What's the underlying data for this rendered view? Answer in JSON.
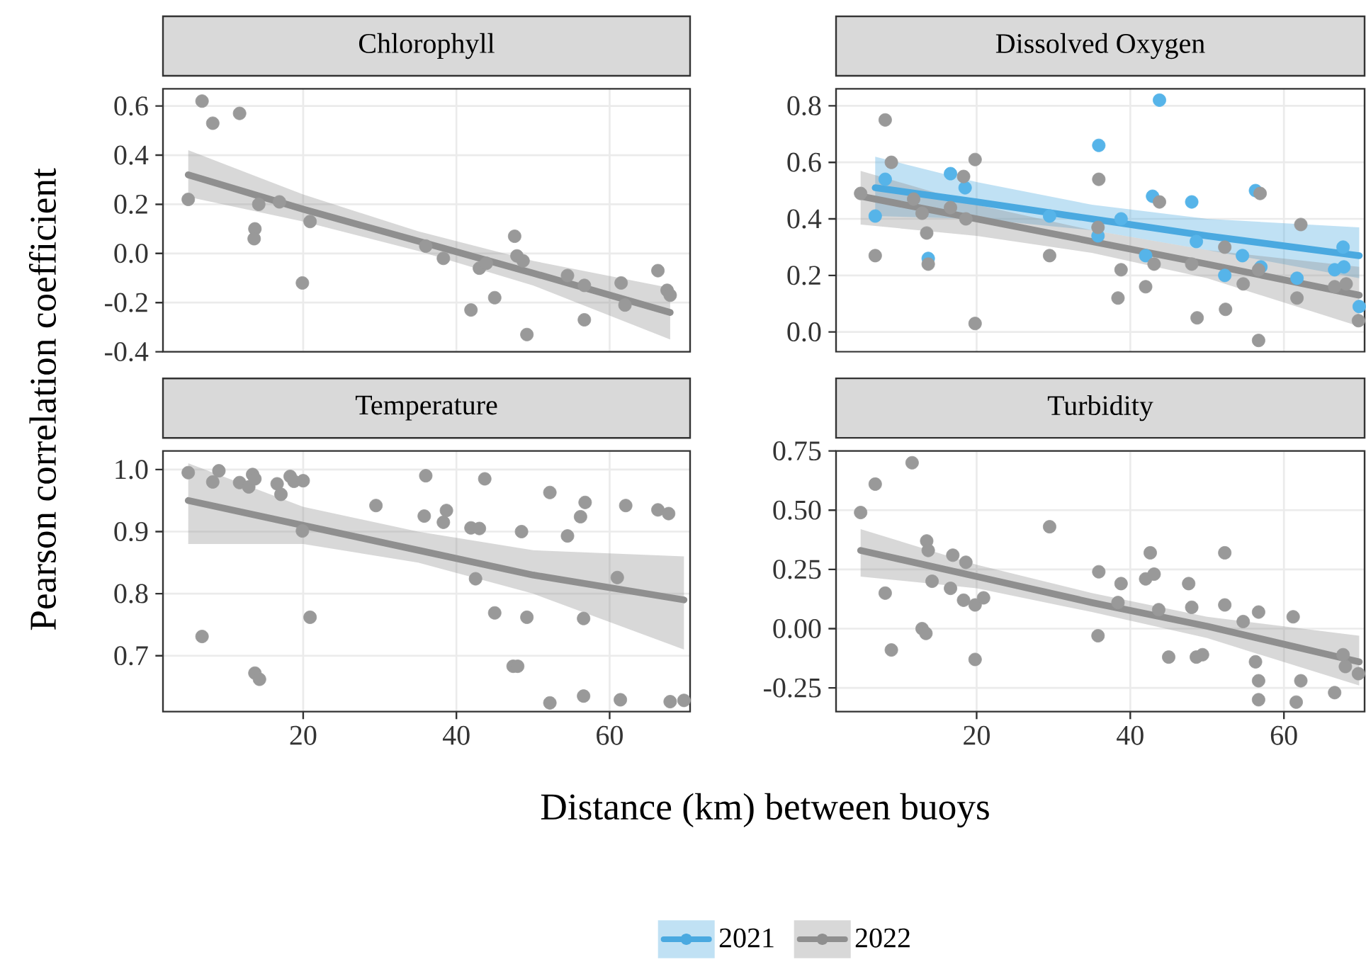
{
  "chart_data": [
    {
      "type": "scatter",
      "title": "Chlorophyll",
      "ylabel": "Pearson correlation coefficient",
      "xlim": [
        1.7,
        70.5
      ],
      "ylim": [
        -0.4,
        0.67
      ],
      "xticks": [
        20,
        40,
        60
      ],
      "yticks": [
        -0.4,
        -0.2,
        {
          "value": 0,
          "label": "0.0"
        },
        0.2,
        0.4,
        0.6
      ],
      "grid": true,
      "tick_labels": "y",
      "series": [
        {
          "type": "scatter",
          "marker": "circle",
          "color": "#999999",
          "x": [
            5.0,
            6.8,
            8.2,
            11.7,
            13.7,
            13.6,
            14.2,
            16.9,
            19.9,
            20.9,
            36.0,
            38.3,
            41.9,
            43.0,
            43.9,
            45.0,
            47.6,
            47.9,
            48.7,
            49.2,
            54.5,
            56.7,
            56.7,
            61.5,
            62.0,
            66.3,
            67.5,
            67.9
          ],
          "values": [
            0.22,
            0.62,
            0.53,
            0.57,
            0.1,
            0.06,
            0.2,
            0.21,
            -0.12,
            0.13,
            0.03,
            -0.02,
            -0.23,
            -0.06,
            -0.04,
            -0.18,
            0.07,
            -0.01,
            -0.03,
            -0.33,
            -0.09,
            -0.13,
            -0.27,
            -0.12,
            -0.21,
            -0.07,
            -0.15,
            -0.17
          ]
        },
        {
          "type": "line",
          "color": "#8f8f8f",
          "x": [
            5.0,
            20,
            35,
            50,
            67.9
          ],
          "values": [
            0.32,
            0.18,
            0.05,
            -0.08,
            -0.24
          ],
          "lower": [
            0.23,
            0.13,
            0.01,
            -0.13,
            -0.35
          ],
          "upper": [
            0.42,
            0.24,
            0.09,
            -0.03,
            -0.14
          ]
        }
      ]
    },
    {
      "type": "scatter",
      "title": "Dissolved Oxygen",
      "xlim": [
        1.7,
        70.5
      ],
      "ylim": [
        -0.07,
        0.86
      ],
      "xticks": [
        20,
        40,
        60
      ],
      "yticks": [
        {
          "value": 0,
          "label": "0.0"
        },
        0.2,
        0.4,
        0.6,
        0.8
      ],
      "grid": true,
      "tick_labels": "y",
      "legend": "bottom",
      "series": [
        {
          "type": "scatter",
          "marker": "circle",
          "color": "#56b4e9",
          "x": [
            6.8,
            8.1,
            13.7,
            16.6,
            18.5,
            29.5,
            35.9,
            35.8,
            38.8,
            43.8,
            42.9,
            42.0,
            48.0,
            48.6,
            52.3,
            54.6,
            56.3,
            57.0,
            61.7,
            66.6,
            67.7,
            67.8,
            69.8
          ],
          "values": [
            0.41,
            0.54,
            0.26,
            0.56,
            0.51,
            0.41,
            0.66,
            0.34,
            0.4,
            0.82,
            0.48,
            0.27,
            0.46,
            0.32,
            0.2,
            0.27,
            0.5,
            0.23,
            0.19,
            0.22,
            0.3,
            0.23,
            0.09
          ]
        },
        {
          "type": "line",
          "name": "2021",
          "color": "#4aa9e0",
          "x": [
            6.8,
            20,
            35,
            50,
            69.8
          ],
          "values": [
            0.51,
            0.46,
            0.4,
            0.34,
            0.27
          ],
          "lower": [
            0.41,
            0.4,
            0.36,
            0.29,
            0.19
          ],
          "upper": [
            0.62,
            0.53,
            0.45,
            0.4,
            0.37
          ]
        },
        {
          "type": "scatter",
          "marker": "circle",
          "color": "#999999",
          "x": [
            4.9,
            6.8,
            8.1,
            8.9,
            11.8,
            12.9,
            13.5,
            13.7,
            16.6,
            18.3,
            18.6,
            19.8,
            19.8,
            29.5,
            35.9,
            35.8,
            38.8,
            38.4,
            42.0,
            43.1,
            43.8,
            48.0,
            48.7,
            52.3,
            52.4,
            54.7,
            56.9,
            56.7,
            56.7,
            62.2,
            61.7,
            66.6,
            68.1,
            69.7
          ],
          "values": [
            0.49,
            0.27,
            0.75,
            0.6,
            0.47,
            0.42,
            0.35,
            0.24,
            0.44,
            0.55,
            0.4,
            0.61,
            0.03,
            0.27,
            0.54,
            0.37,
            0.22,
            0.12,
            0.16,
            0.24,
            0.46,
            0.24,
            0.05,
            0.3,
            0.08,
            0.17,
            0.49,
            0.22,
            -0.03,
            0.38,
            0.12,
            0.16,
            0.17,
            0.04
          ]
        },
        {
          "type": "line",
          "name": "2022",
          "color": "#8f8f8f",
          "x": [
            4.9,
            20,
            35,
            50,
            69.8
          ],
          "values": [
            0.48,
            0.4,
            0.32,
            0.24,
            0.13
          ],
          "lower": [
            0.38,
            0.34,
            0.28,
            0.19,
            0.02
          ],
          "upper": [
            0.57,
            0.45,
            0.36,
            0.29,
            0.23
          ]
        }
      ]
    },
    {
      "type": "scatter",
      "title": "Temperature",
      "xlabel": "Distance (km) between buoys",
      "xlim": [
        1.7,
        70.5
      ],
      "ylim": [
        0.61,
        1.03
      ],
      "xticks": [
        20,
        40,
        60
      ],
      "yticks": [
        0.7,
        0.8,
        0.9,
        {
          "value": 1,
          "label": "1.0"
        }
      ],
      "grid": true,
      "series": [
        {
          "type": "scatter",
          "marker": "circle",
          "color": "#999999",
          "x": [
            5.0,
            6.8,
            8.2,
            9.0,
            11.7,
            12.9,
            13.4,
            13.7,
            13.7,
            14.3,
            16.6,
            17.1,
            18.3,
            18.8,
            20.0,
            19.9,
            20.9,
            29.5,
            35.8,
            36.0,
            38.3,
            38.7,
            41.9,
            43.0,
            42.5,
            43.7,
            45.0,
            47.4,
            48.0,
            48.5,
            49.2,
            52.2,
            52.2,
            54.5,
            56.2,
            56.8,
            56.6,
            56.6,
            61.4,
            61.0,
            62.1,
            66.3,
            67.7,
            67.9,
            69.7
          ],
          "values": [
            0.995,
            0.731,
            0.98,
            0.998,
            0.979,
            0.972,
            0.992,
            0.985,
            0.672,
            0.662,
            0.977,
            0.96,
            0.989,
            0.981,
            0.982,
            0.901,
            0.762,
            0.942,
            0.925,
            0.99,
            0.915,
            0.934,
            0.906,
            0.905,
            0.824,
            0.985,
            0.769,
            0.683,
            0.683,
            0.9,
            0.762,
            0.963,
            0.624,
            0.893,
            0.924,
            0.947,
            0.76,
            0.635,
            0.629,
            0.826,
            0.942,
            0.935,
            0.929,
            0.626,
            0.628
          ]
        },
        {
          "type": "line",
          "color": "#8f8f8f",
          "x": [
            5.0,
            20,
            35,
            50,
            69.7
          ],
          "values": [
            0.95,
            0.91,
            0.87,
            0.83,
            0.79
          ],
          "lower": [
            0.88,
            0.88,
            0.85,
            0.8,
            0.71
          ],
          "upper": [
            1.01,
            0.94,
            0.9,
            0.87,
            0.86
          ]
        }
      ]
    },
    {
      "type": "scatter",
      "title": "Turbidity",
      "xlim": [
        1.7,
        70.5
      ],
      "ylim": [
        -0.35,
        0.75
      ],
      "xticks": [
        20,
        40,
        60
      ],
      "yticks": [
        -0.25,
        {
          "value": 0,
          "label": "0.00"
        },
        0.25,
        {
          "value": 0.5,
          "label": "0.50"
        },
        0.75
      ],
      "grid": true,
      "series": [
        {
          "type": "scatter",
          "marker": "circle",
          "color": "#999999",
          "x": [
            4.9,
            6.8,
            8.1,
            8.9,
            11.6,
            12.9,
            13.4,
            13.5,
            13.7,
            14.2,
            16.9,
            16.6,
            18.3,
            18.6,
            19.8,
            20.9,
            19.8,
            29.5,
            35.8,
            35.9,
            38.4,
            38.8,
            42.0,
            42.6,
            43.1,
            43.7,
            45.0,
            47.6,
            48.0,
            48.6,
            49.4,
            52.3,
            52.3,
            54.7,
            56.7,
            56.3,
            56.7,
            56.7,
            61.2,
            62.2,
            61.6,
            66.6,
            67.7,
            68.0,
            69.7
          ],
          "values": [
            0.49,
            0.61,
            0.15,
            -0.09,
            0.7,
            0.0,
            -0.02,
            0.37,
            0.33,
            0.2,
            0.31,
            0.17,
            0.12,
            0.28,
            0.1,
            0.13,
            -0.13,
            0.43,
            -0.03,
            0.24,
            0.11,
            0.19,
            0.21,
            0.32,
            0.23,
            0.08,
            -0.12,
            0.19,
            0.09,
            -0.12,
            -0.11,
            0.32,
            0.1,
            0.03,
            0.07,
            -0.14,
            -0.22,
            -0.3,
            0.05,
            -0.22,
            -0.31,
            -0.27,
            -0.11,
            -0.16,
            -0.19
          ]
        },
        {
          "type": "line",
          "color": "#8f8f8f",
          "x": [
            4.9,
            20,
            35,
            50,
            69.8
          ],
          "values": [
            0.33,
            0.22,
            0.11,
            0.01,
            -0.14
          ],
          "lower": [
            0.22,
            0.17,
            0.07,
            -0.04,
            -0.24
          ],
          "upper": [
            0.42,
            0.27,
            0.15,
            0.05,
            -0.03
          ]
        }
      ]
    }
  ]
}
